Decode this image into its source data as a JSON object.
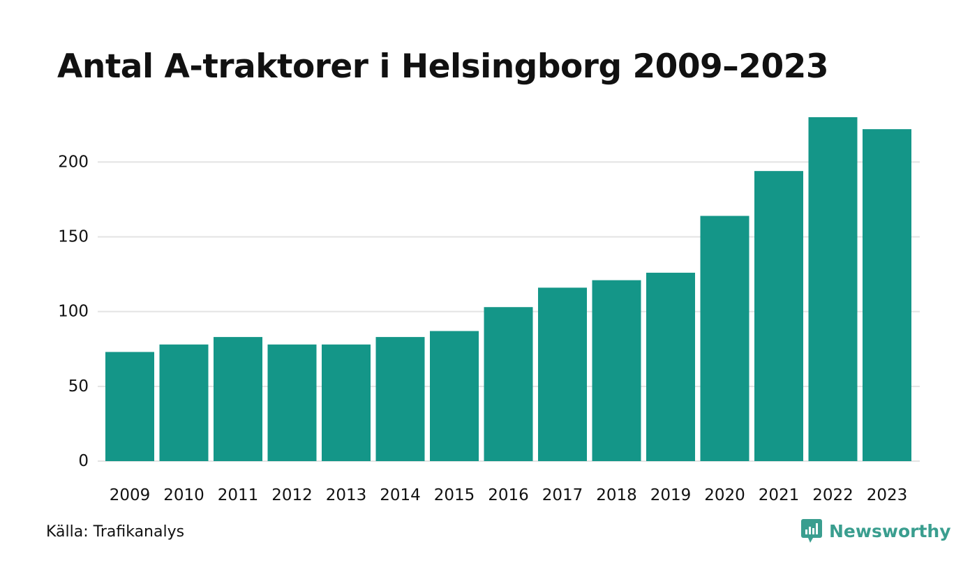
{
  "chart_data": {
    "type": "bar",
    "title": "Antal A-traktorer i Helsingborg 2009–2023",
    "categories": [
      "2009",
      "2010",
      "2011",
      "2012",
      "2013",
      "2014",
      "2015",
      "2016",
      "2017",
      "2018",
      "2019",
      "2020",
      "2021",
      "2022",
      "2023"
    ],
    "values": [
      73,
      78,
      83,
      78,
      78,
      83,
      87,
      103,
      116,
      121,
      126,
      164,
      194,
      230,
      222
    ],
    "ylim": [
      0,
      230
    ],
    "yticks": [
      0,
      50,
      100,
      150,
      200
    ],
    "xlabel": "",
    "ylabel": "",
    "grid": true,
    "bar_color": "#149688",
    "grid_color": "#e3e3e3"
  },
  "footer": {
    "source": "Källa: Trafikanalys",
    "brand": "Newsworthy",
    "brand_color": "#3a9e8f"
  }
}
